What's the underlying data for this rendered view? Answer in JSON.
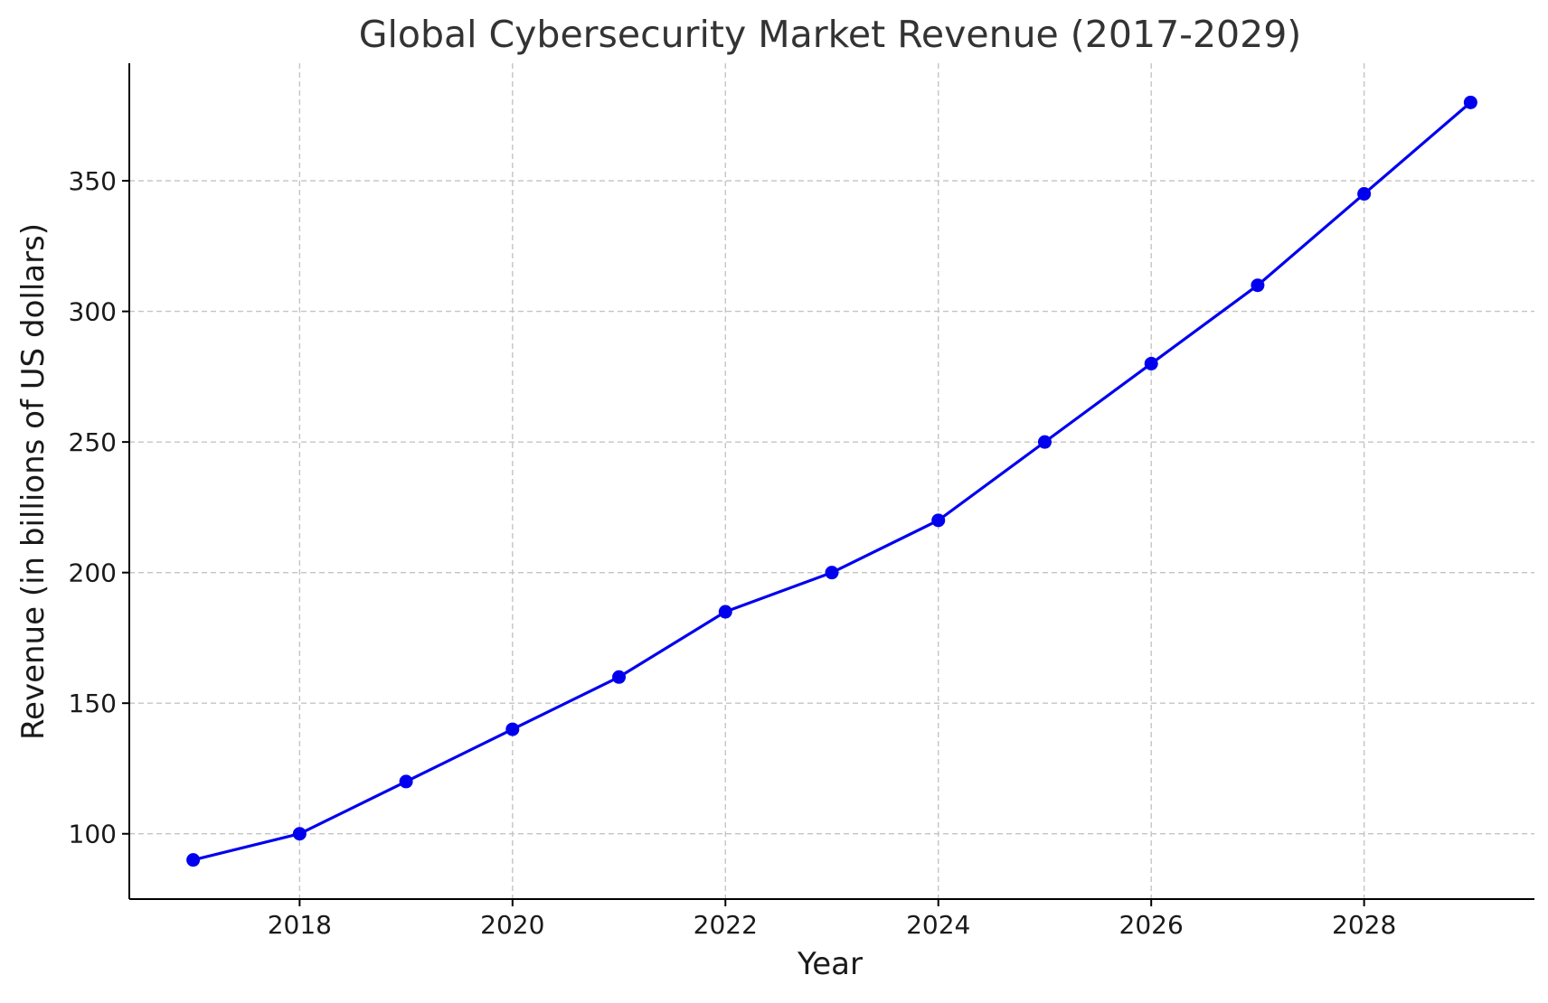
{
  "chart_data": {
    "type": "line",
    "title": "Global Cybersecurity Market Revenue (2017-2029)",
    "xlabel": "Year",
    "ylabel": "Revenue (in billions of US dollars)",
    "xlim": [
      2016.4,
      2029.6
    ],
    "ylim": [
      75,
      395
    ],
    "xticks": [
      2018,
      2020,
      2022,
      2024,
      2026,
      2028
    ],
    "yticks": [
      100,
      150,
      200,
      250,
      300,
      350
    ],
    "grid": true,
    "series": [
      {
        "color": "#0000ee",
        "marker": "circle",
        "points": [
          {
            "x": 2017,
            "y": 90
          },
          {
            "x": 2018,
            "y": 100
          },
          {
            "x": 2019,
            "y": 120
          },
          {
            "x": 2020,
            "y": 140
          },
          {
            "x": 2021,
            "y": 160
          },
          {
            "x": 2022,
            "y": 185
          },
          {
            "x": 2023,
            "y": 200
          },
          {
            "x": 2024,
            "y": 220
          },
          {
            "x": 2025,
            "y": 250
          },
          {
            "x": 2026,
            "y": 280
          },
          {
            "x": 2027,
            "y": 310
          },
          {
            "x": 2028,
            "y": 345
          },
          {
            "x": 2029,
            "y": 380
          }
        ]
      }
    ]
  }
}
